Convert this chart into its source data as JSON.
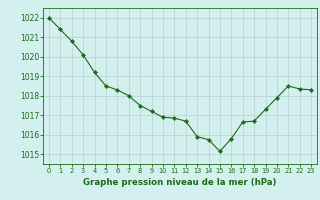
{
  "x": [
    0,
    1,
    2,
    3,
    4,
    5,
    6,
    7,
    8,
    9,
    10,
    11,
    12,
    13,
    14,
    15,
    16,
    17,
    18,
    19,
    20,
    21,
    22,
    23
  ],
  "y": [
    1022.0,
    1021.4,
    1020.8,
    1020.1,
    1019.2,
    1018.5,
    1018.3,
    1018.0,
    1017.5,
    1017.2,
    1016.9,
    1016.85,
    1016.7,
    1015.9,
    1015.75,
    1015.15,
    1015.8,
    1016.65,
    1016.7,
    1017.3,
    1017.9,
    1018.5,
    1018.35,
    1018.3
  ],
  "line_color": "#1a6b1a",
  "marker": "D",
  "marker_size": 2.2,
  "bg_color": "#d4f0ee",
  "grid_color": "#b8d8d4",
  "xlabel": "Graphe pression niveau de la mer (hPa)",
  "xlabel_color": "#1a6b1a",
  "tick_color": "#1a6b1a",
  "ylim": [
    1014.5,
    1022.5
  ],
  "yticks": [
    1015,
    1016,
    1017,
    1018,
    1019,
    1020,
    1021,
    1022
  ],
  "xlim": [
    -0.5,
    23.5
  ],
  "xticks": [
    0,
    1,
    2,
    3,
    4,
    5,
    6,
    7,
    8,
    9,
    10,
    11,
    12,
    13,
    14,
    15,
    16,
    17,
    18,
    19,
    20,
    21,
    22,
    23
  ]
}
